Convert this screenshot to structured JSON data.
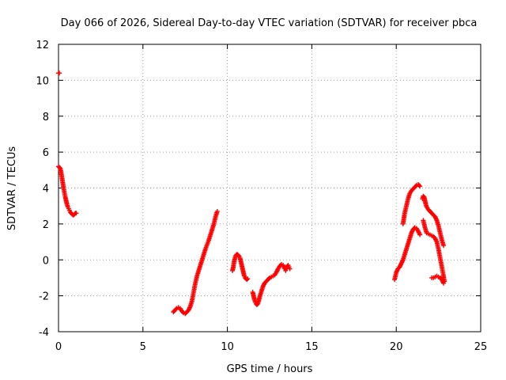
{
  "chart_data": {
    "type": "scatter",
    "title": "Day 066 of 2026, Sidereal Day-to-day VTEC variation (SDTVAR) for receiver pbca",
    "xlabel": "GPS time / hours",
    "ylabel": "SDTVAR / TECUs",
    "xlim": [
      0,
      25
    ],
    "ylim": [
      -4,
      12
    ],
    "xticks": [
      0,
      5,
      10,
      15,
      20,
      25
    ],
    "yticks": [
      -4,
      -2,
      0,
      2,
      4,
      6,
      8,
      10,
      12
    ],
    "grid": true,
    "marker": "+",
    "color": "#ff0000",
    "series": [
      {
        "name": "SDTVAR",
        "segments": [
          [
            [
              0.0,
              10.4
            ],
            [
              0.05,
              10.4
            ]
          ],
          [
            [
              0.0,
              5.2
            ],
            [
              0.1,
              5.1
            ],
            [
              0.15,
              4.9
            ],
            [
              0.2,
              4.6
            ],
            [
              0.25,
              4.3
            ],
            [
              0.3,
              4.0
            ],
            [
              0.35,
              3.75
            ],
            [
              0.4,
              3.5
            ],
            [
              0.45,
              3.3
            ],
            [
              0.5,
              3.1
            ],
            [
              0.55,
              2.95
            ],
            [
              0.6,
              2.85
            ],
            [
              0.65,
              2.75
            ],
            [
              0.7,
              2.65
            ],
            [
              0.75,
              2.6
            ],
            [
              0.8,
              2.55
            ],
            [
              0.85,
              2.5
            ],
            [
              0.9,
              2.5
            ],
            [
              0.95,
              2.55
            ],
            [
              1.0,
              2.6
            ],
            [
              1.05,
              2.6
            ]
          ],
          [
            [
              6.8,
              -2.9
            ],
            [
              6.9,
              -2.8
            ],
            [
              7.0,
              -2.7
            ],
            [
              7.1,
              -2.65
            ],
            [
              7.2,
              -2.7
            ],
            [
              7.3,
              -2.85
            ],
            [
              7.4,
              -2.95
            ],
            [
              7.5,
              -3.0
            ],
            [
              7.6,
              -2.9
            ],
            [
              7.7,
              -2.8
            ],
            [
              7.8,
              -2.6
            ],
            [
              7.9,
              -2.3
            ],
            [
              8.0,
              -1.8
            ],
            [
              8.1,
              -1.3
            ],
            [
              8.2,
              -0.9
            ],
            [
              8.3,
              -0.6
            ],
            [
              8.4,
              -0.3
            ],
            [
              8.5,
              0.0
            ],
            [
              8.6,
              0.3
            ],
            [
              8.7,
              0.6
            ],
            [
              8.8,
              0.85
            ],
            [
              8.9,
              1.1
            ],
            [
              9.0,
              1.4
            ],
            [
              9.1,
              1.7
            ],
            [
              9.2,
              2.0
            ],
            [
              9.3,
              2.4
            ],
            [
              9.4,
              2.7
            ]
          ],
          [
            [
              10.3,
              -0.6
            ],
            [
              10.35,
              -0.4
            ],
            [
              10.4,
              -0.1
            ],
            [
              10.45,
              0.1
            ],
            [
              10.5,
              0.25
            ],
            [
              10.55,
              0.3
            ],
            [
              10.6,
              0.3
            ],
            [
              10.65,
              0.25
            ],
            [
              10.7,
              0.2
            ],
            [
              10.75,
              0.1
            ],
            [
              10.8,
              -0.1
            ],
            [
              10.85,
              -0.3
            ],
            [
              10.9,
              -0.5
            ],
            [
              10.95,
              -0.7
            ],
            [
              11.0,
              -0.9
            ],
            [
              11.05,
              -1.0
            ],
            [
              11.1,
              -1.05
            ],
            [
              11.15,
              -1.1
            ],
            [
              11.2,
              -1.05
            ]
          ],
          [
            [
              11.5,
              -1.8
            ],
            [
              11.55,
              -2.0
            ],
            [
              11.6,
              -2.2
            ],
            [
              11.65,
              -2.35
            ],
            [
              11.7,
              -2.45
            ],
            [
              11.75,
              -2.5
            ],
            [
              11.8,
              -2.45
            ],
            [
              11.85,
              -2.3
            ],
            [
              11.9,
              -2.1
            ],
            [
              12.0,
              -1.8
            ],
            [
              12.1,
              -1.5
            ],
            [
              12.2,
              -1.3
            ],
            [
              12.3,
              -1.2
            ],
            [
              12.4,
              -1.1
            ],
            [
              12.5,
              -1.0
            ],
            [
              12.6,
              -0.95
            ],
            [
              12.7,
              -0.9
            ],
            [
              12.8,
              -0.85
            ],
            [
              12.9,
              -0.7
            ],
            [
              13.0,
              -0.5
            ],
            [
              13.1,
              -0.35
            ],
            [
              13.2,
              -0.25
            ],
            [
              13.3,
              -0.3
            ],
            [
              13.4,
              -0.5
            ],
            [
              13.45,
              -0.6
            ],
            [
              13.5,
              -0.5
            ],
            [
              13.55,
              -0.35
            ],
            [
              13.6,
              -0.3
            ],
            [
              13.65,
              -0.4
            ],
            [
              13.7,
              -0.5
            ]
          ],
          [
            [
              19.9,
              -1.1
            ],
            [
              20.0,
              -0.7
            ],
            [
              20.1,
              -0.5
            ],
            [
              20.2,
              -0.4
            ],
            [
              20.3,
              -0.2
            ],
            [
              20.4,
              0.0
            ],
            [
              20.5,
              0.3
            ],
            [
              20.6,
              0.6
            ],
            [
              20.7,
              0.9
            ],
            [
              20.8,
              1.2
            ],
            [
              20.9,
              1.5
            ],
            [
              21.0,
              1.7
            ],
            [
              21.1,
              1.8
            ],
            [
              21.2,
              1.75
            ],
            [
              21.3,
              1.6
            ],
            [
              21.4,
              1.4
            ]
          ],
          [
            [
              20.4,
              2.0
            ],
            [
              20.5,
              2.6
            ],
            [
              20.6,
              3.0
            ],
            [
              20.7,
              3.4
            ],
            [
              20.8,
              3.7
            ],
            [
              20.9,
              3.85
            ],
            [
              21.0,
              3.95
            ],
            [
              21.1,
              4.05
            ],
            [
              21.2,
              4.15
            ],
            [
              21.3,
              4.2
            ],
            [
              21.4,
              4.1
            ]
          ],
          [
            [
              21.55,
              3.4
            ],
            [
              21.6,
              3.55
            ],
            [
              21.65,
              3.5
            ],
            [
              21.7,
              3.3
            ],
            [
              21.75,
              3.1
            ],
            [
              21.8,
              2.95
            ],
            [
              21.9,
              2.8
            ],
            [
              22.0,
              2.7
            ],
            [
              22.1,
              2.6
            ],
            [
              22.2,
              2.5
            ],
            [
              22.3,
              2.4
            ],
            [
              22.4,
              2.2
            ],
            [
              22.5,
              1.9
            ],
            [
              22.6,
              1.5
            ],
            [
              22.7,
              1.1
            ],
            [
              22.8,
              0.8
            ]
          ],
          [
            [
              21.6,
              2.2
            ],
            [
              21.7,
              1.8
            ],
            [
              21.8,
              1.5
            ],
            [
              21.9,
              1.45
            ],
            [
              22.0,
              1.4
            ],
            [
              22.1,
              1.35
            ],
            [
              22.2,
              1.3
            ],
            [
              22.3,
              1.2
            ],
            [
              22.4,
              1.0
            ],
            [
              22.5,
              0.6
            ],
            [
              22.6,
              0.1
            ],
            [
              22.7,
              -0.4
            ],
            [
              22.8,
              -0.9
            ],
            [
              22.85,
              -1.2
            ]
          ],
          [
            [
              22.1,
              -1.0
            ],
            [
              22.2,
              -1.0
            ],
            [
              22.3,
              -0.95
            ],
            [
              22.4,
              -0.9
            ],
            [
              22.5,
              -0.95
            ],
            [
              22.6,
              -1.0
            ],
            [
              22.7,
              -1.1
            ],
            [
              22.8,
              -1.3
            ]
          ]
        ]
      }
    ]
  }
}
